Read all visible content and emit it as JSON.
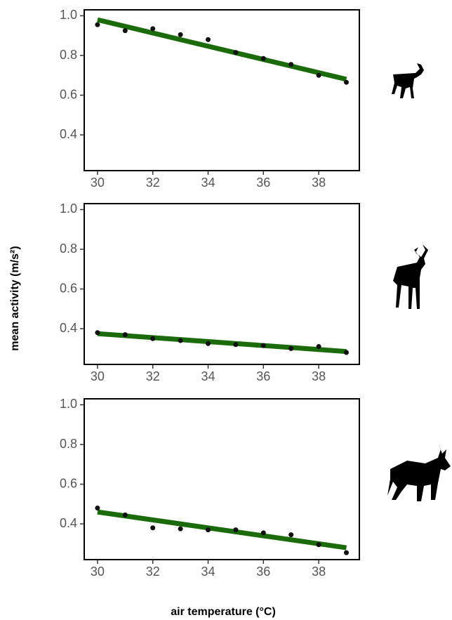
{
  "ylabel": "mean activity (m/s²)",
  "xlabel": "air temperature (°C)",
  "chart_data": [
    {
      "type": "scatter",
      "xlim": [
        29.52,
        39.47
      ],
      "ylim": [
        0.22,
        1.03
      ],
      "xticks": [
        30,
        32,
        34,
        36,
        38
      ],
      "yticks": [
        0.4,
        0.6,
        0.8,
        {
          "value": 1,
          "label": "1.0"
        }
      ],
      "points": {
        "color": "#111111",
        "x": [
          30,
          31,
          32,
          33,
          34,
          35,
          36,
          37,
          38,
          39
        ],
        "values": [
          0.955,
          0.925,
          0.935,
          0.905,
          0.88,
          0.815,
          0.785,
          0.755,
          0.7,
          0.665
        ]
      },
      "fit": {
        "color": "#1b6b0c",
        "x": [
          30,
          39
        ],
        "values": [
          0.98,
          0.68
        ]
      }
    },
    {
      "type": "scatter",
      "xlim": [
        29.52,
        39.47
      ],
      "ylim": [
        0.22,
        1.03
      ],
      "xticks": [
        30,
        32,
        34,
        36,
        38
      ],
      "yticks": [
        0.4,
        0.6,
        0.8,
        {
          "value": 1,
          "label": "1.0"
        }
      ],
      "points": {
        "color": "#111111",
        "x": [
          30,
          31,
          32,
          33,
          34,
          35,
          36,
          37,
          38,
          39
        ],
        "values": [
          0.38,
          0.37,
          0.35,
          0.34,
          0.325,
          0.32,
          0.315,
          0.3,
          0.31,
          0.28
        ]
      },
      "fit": {
        "color": "#1b6b0c",
        "x": [
          30,
          39
        ],
        "values": [
          0.375,
          0.285
        ]
      }
    },
    {
      "type": "scatter",
      "xlim": [
        29.52,
        39.47
      ],
      "ylim": [
        0.22,
        1.03
      ],
      "xticks": [
        30,
        32,
        34,
        36,
        38
      ],
      "yticks": [
        0.4,
        0.6,
        0.8,
        {
          "value": 1,
          "label": "1.0"
        }
      ],
      "points": {
        "color": "#111111",
        "x": [
          30,
          31,
          32,
          33,
          34,
          35,
          36,
          37,
          38,
          39
        ],
        "values": [
          0.48,
          0.445,
          0.38,
          0.375,
          0.37,
          0.37,
          0.355,
          0.345,
          0.295,
          0.255
        ]
      },
      "fit": {
        "color": "#1b6b0c",
        "x": [
          30,
          39
        ],
        "values": [
          0.46,
          0.28
        ]
      }
    }
  ]
}
